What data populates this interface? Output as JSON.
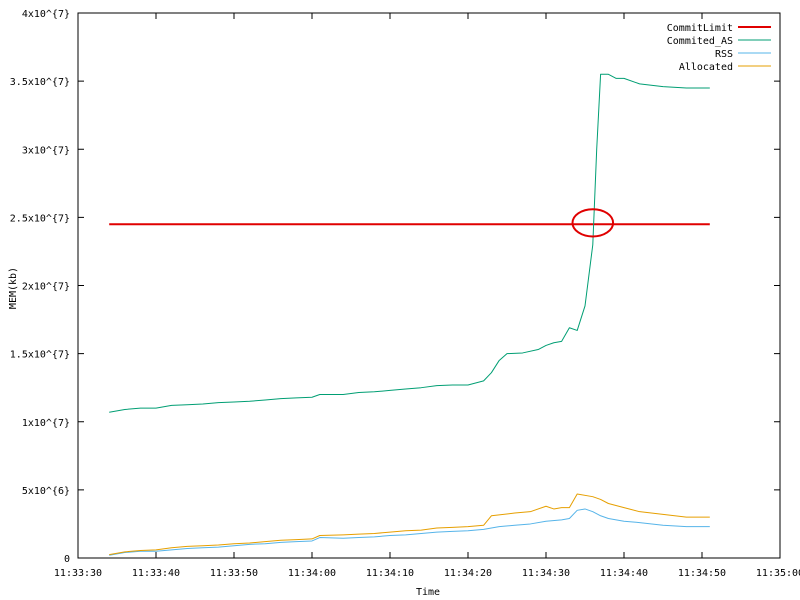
{
  "chart_data": {
    "type": "line",
    "title": "",
    "xlabel": "Time",
    "ylabel": "MEM(kb)",
    "legend_position": "top-right",
    "grid": false,
    "x_ticks": [
      "11:33:30",
      "11:33:40",
      "11:33:50",
      "11:34:00",
      "11:34:10",
      "11:34:20",
      "11:34:30",
      "11:34:40",
      "11:34:50",
      "11:35:00"
    ],
    "x_tick_seconds": [
      0,
      10,
      20,
      30,
      40,
      50,
      60,
      70,
      80,
      90
    ],
    "xlim": [
      "11:33:30",
      "11:35:00"
    ],
    "y_ticks": [
      "0",
      "5x10^{6}",
      "1x10^{7}",
      "1.5x10^{7}",
      "2x10^{7}",
      "2.5x10^{7}",
      "3x10^{7}",
      "3.5x10^{7}",
      "4x10^{7}"
    ],
    "y_tick_values": [
      0,
      5000000,
      10000000,
      15000000,
      20000000,
      25000000,
      30000000,
      35000000,
      40000000
    ],
    "ylim": [
      0,
      40000000
    ],
    "annotation": {
      "type": "ellipse",
      "color": "#e00000",
      "center_x": "11:34:36",
      "center_y": 24600000,
      "rx_seconds": 2.6,
      "ry_value": 1000000
    },
    "series": [
      {
        "name": "CommitLimit",
        "color": "#e00000",
        "width": 2,
        "x": [
          "11:33:34",
          "11:34:51"
        ],
        "y": [
          24500000,
          24500000
        ]
      },
      {
        "name": "Commited_AS",
        "color": "#009e73",
        "width": 1,
        "x": [
          "11:33:34",
          "11:33:36",
          "11:33:38",
          "11:33:40",
          "11:33:42",
          "11:33:44",
          "11:33:46",
          "11:33:48",
          "11:33:50",
          "11:33:52",
          "11:33:54",
          "11:33:56",
          "11:33:58",
          "11:34:00",
          "11:34:01",
          "11:34:04",
          "11:34:06",
          "11:34:08",
          "11:34:10",
          "11:34:12",
          "11:34:14",
          "11:34:16",
          "11:34:18",
          "11:34:20",
          "11:34:22",
          "11:34:23",
          "11:34:24",
          "11:34:25",
          "11:34:27",
          "11:34:29",
          "11:34:30",
          "11:34:31",
          "11:34:32",
          "11:34:33",
          "11:34:34",
          "11:34:35",
          "11:34:36",
          "11:34:36.5",
          "11:34:37",
          "11:34:38",
          "11:34:39",
          "11:34:40",
          "11:34:42",
          "11:34:45",
          "11:34:48",
          "11:34:51"
        ],
        "y": [
          10700000,
          10900000,
          11000000,
          11000000,
          11200000,
          11250000,
          11300000,
          11400000,
          11450000,
          11500000,
          11600000,
          11700000,
          11750000,
          11800000,
          12000000,
          12000000,
          12150000,
          12200000,
          12300000,
          12400000,
          12500000,
          12650000,
          12700000,
          12700000,
          13000000,
          13600000,
          14500000,
          15000000,
          15050000,
          15300000,
          15600000,
          15800000,
          15900000,
          16900000,
          16700000,
          18500000,
          23000000,
          30000000,
          35500000,
          35500000,
          35200000,
          35200000,
          34800000,
          34600000,
          34500000,
          34500000
        ]
      },
      {
        "name": "RSS",
        "color": "#56b4e9",
        "width": 1,
        "x": [
          "11:33:34",
          "11:33:36",
          "11:33:38",
          "11:33:40",
          "11:33:42",
          "11:33:44",
          "11:33:46",
          "11:33:48",
          "11:33:50",
          "11:33:52",
          "11:33:54",
          "11:33:56",
          "11:33:58",
          "11:34:00",
          "11:34:01",
          "11:34:04",
          "11:34:06",
          "11:34:08",
          "11:34:10",
          "11:34:12",
          "11:34:14",
          "11:34:16",
          "11:34:18",
          "11:34:20",
          "11:34:22",
          "11:34:24",
          "11:34:26",
          "11:34:28",
          "11:34:30",
          "11:34:32",
          "11:34:33",
          "11:34:34",
          "11:34:35",
          "11:34:36",
          "11:34:37",
          "11:34:38",
          "11:34:40",
          "11:34:42",
          "11:34:45",
          "11:34:48",
          "11:34:51"
        ],
        "y": [
          200000,
          400000,
          500000,
          500000,
          600000,
          700000,
          750000,
          800000,
          900000,
          1000000,
          1050000,
          1150000,
          1200000,
          1250000,
          1500000,
          1450000,
          1500000,
          1550000,
          1650000,
          1700000,
          1800000,
          1900000,
          1950000,
          2000000,
          2100000,
          2300000,
          2400000,
          2500000,
          2700000,
          2800000,
          2900000,
          3500000,
          3600000,
          3400000,
          3100000,
          2900000,
          2700000,
          2600000,
          2400000,
          2300000,
          2300000
        ]
      },
      {
        "name": "Allocated",
        "color": "#e69f00",
        "width": 1,
        "x": [
          "11:33:34",
          "11:33:36",
          "11:33:38",
          "11:33:40",
          "11:33:42",
          "11:33:44",
          "11:33:46",
          "11:33:48",
          "11:33:50",
          "11:33:52",
          "11:33:54",
          "11:33:56",
          "11:33:58",
          "11:34:00",
          "11:34:01",
          "11:34:04",
          "11:34:06",
          "11:34:08",
          "11:34:10",
          "11:34:12",
          "11:34:14",
          "11:34:16",
          "11:34:18",
          "11:34:20",
          "11:34:22",
          "11:34:23",
          "11:34:26",
          "11:34:28",
          "11:34:30",
          "11:34:31",
          "11:34:32",
          "11:34:33",
          "11:34:34",
          "11:34:36",
          "11:34:37",
          "11:34:38",
          "11:34:40",
          "11:34:42",
          "11:34:45",
          "11:34:48",
          "11:34:51"
        ],
        "y": [
          250000,
          450000,
          550000,
          600000,
          750000,
          850000,
          900000,
          950000,
          1050000,
          1100000,
          1200000,
          1300000,
          1350000,
          1400000,
          1650000,
          1700000,
          1750000,
          1800000,
          1900000,
          2000000,
          2050000,
          2200000,
          2250000,
          2300000,
          2400000,
          3100000,
          3300000,
          3400000,
          3800000,
          3600000,
          3700000,
          3700000,
          4700000,
          4500000,
          4300000,
          4000000,
          3700000,
          3400000,
          3200000,
          3000000,
          3000000
        ]
      }
    ]
  }
}
